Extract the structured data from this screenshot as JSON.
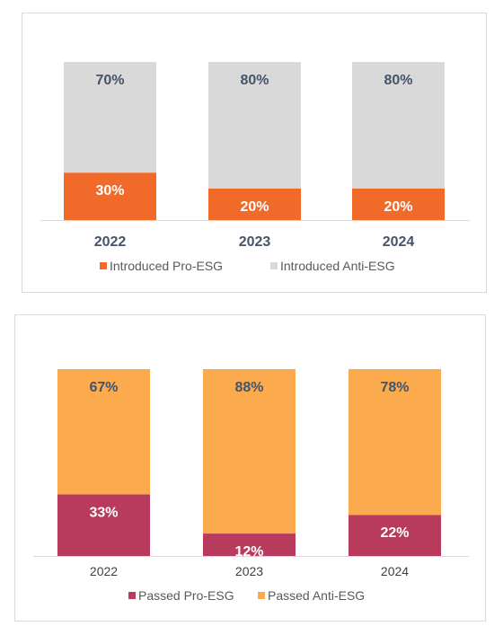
{
  "chart_data": [
    {
      "type": "bar",
      "stacked": true,
      "percent_stacked": true,
      "categories": [
        "2022",
        "2023",
        "2024"
      ],
      "series": [
        {
          "name": "Introduced Pro-ESG",
          "values": [
            30,
            20,
            20
          ],
          "labels": [
            "30%",
            "20%",
            "20%"
          ],
          "color": "#f26a2a",
          "label_color": "#ffffff"
        },
        {
          "name": "Introduced Anti-ESG",
          "values": [
            70,
            80,
            80
          ],
          "labels": [
            "70%",
            "80%",
            "80%"
          ],
          "color": "#d9d9d9",
          "label_color": "#44546a"
        }
      ],
      "ylim": [
        0,
        100
      ],
      "tick_style": "bold",
      "grid": false,
      "legend": "bottom"
    },
    {
      "type": "bar",
      "stacked": true,
      "percent_stacked": true,
      "categories": [
        "2022",
        "2023",
        "2024"
      ],
      "series": [
        {
          "name": "Passed Pro-ESG",
          "values": [
            33,
            12,
            22
          ],
          "labels": [
            "33%",
            "12%",
            "22%"
          ],
          "color": "#b83b5e",
          "label_color": "#ffffff"
        },
        {
          "name": "Passed Anti-ESG",
          "values": [
            67,
            88,
            78
          ],
          "labels": [
            "67%",
            "88%",
            "78%"
          ],
          "color": "#fbab4d",
          "label_color": "#44546a"
        }
      ],
      "ylim": [
        0,
        100
      ],
      "tick_style": "normal",
      "grid": false,
      "legend": "bottom"
    }
  ]
}
